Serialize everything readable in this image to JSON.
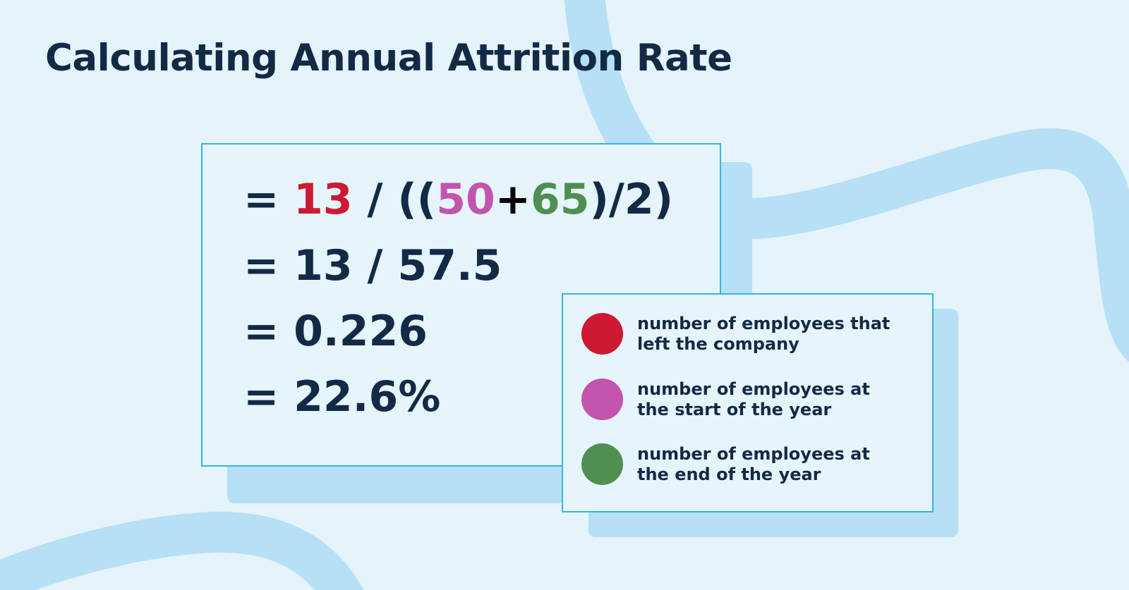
{
  "title": "Calculating Annual Attrition Rate",
  "colors": {
    "background": "#e5f3fb",
    "ribbon": "#b6e0f5",
    "card_border": "#35b6e3",
    "text": "#132a46",
    "left": "#cc1a34",
    "start": "#c254ae",
    "end": "#4f8f51"
  },
  "formula": {
    "line1": {
      "eq": "= ",
      "left": "13",
      "mid1": " / ((",
      "start": "50",
      "plus": "+",
      "end": "65",
      "tail": ")/2)"
    },
    "line2": "= 13 / 57.5",
    "line3": "= 0.226",
    "line4": "= 22.6%"
  },
  "legend": [
    {
      "label": "number of employees that left the company",
      "color": "#cc1a34"
    },
    {
      "label": "number of employees at the start of the year",
      "color": "#c254ae"
    },
    {
      "label": "number of employees at the end of the year",
      "color": "#4f8f51"
    }
  ]
}
